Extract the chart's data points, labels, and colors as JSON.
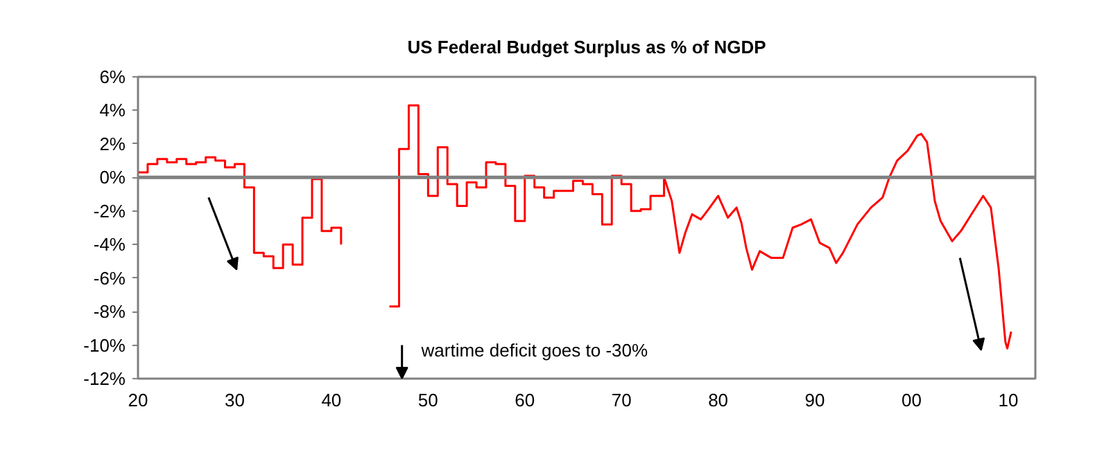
{
  "chart_data": {
    "type": "line",
    "title": "US Federal Budget Surplus as % of NGDP",
    "xlim": [
      1920,
      2012.8
    ],
    "xticks": [
      {
        "value": 1920,
        "label": "20"
      },
      {
        "value": 1930,
        "label": "30"
      },
      {
        "value": 1940,
        "label": "40"
      },
      {
        "value": 1950,
        "label": "50"
      },
      {
        "value": 1960,
        "label": "60"
      },
      {
        "value": 1970,
        "label": "70"
      },
      {
        "value": 1980,
        "label": "80"
      },
      {
        "value": 1990,
        "label": "90"
      },
      {
        "value": 2000,
        "label": "00"
      },
      {
        "value": 2010,
        "label": "10"
      }
    ],
    "ylim": [
      -12,
      6
    ],
    "yticks": [
      {
        "value": 6,
        "label": "6%"
      },
      {
        "value": 4,
        "label": "4%"
      },
      {
        "value": 2,
        "label": "2%"
      },
      {
        "value": 0,
        "label": "0%"
      },
      {
        "value": -2,
        "label": "-2%"
      },
      {
        "value": -4,
        "label": "-4%"
      },
      {
        "value": -6,
        "label": "-6%"
      },
      {
        "value": -8,
        "label": "-8%"
      },
      {
        "value": -10,
        "label": "-10%"
      },
      {
        "value": -12,
        "label": "-12%"
      }
    ],
    "grid": false,
    "ref_lines": [
      {
        "axis": "y",
        "value": 0,
        "color": "#808080"
      }
    ],
    "annotations": [
      "wartime deficit goes to -30%"
    ],
    "series": [
      {
        "type": "step",
        "color": "#ff0000",
        "x": [
          1920,
          1921,
          1922,
          1923,
          1924,
          1925,
          1926,
          1927,
          1928,
          1929,
          1930,
          1931,
          1932,
          1933,
          1934,
          1935,
          1936,
          1937,
          1938,
          1939,
          1940,
          1941,
          1942,
          1943,
          1944,
          1945,
          1946,
          1947,
          1948,
          1949,
          1950,
          1951,
          1952,
          1953,
          1954,
          1955,
          1956,
          1957,
          1958,
          1959,
          1960,
          1961,
          1962,
          1963,
          1964,
          1965,
          1966,
          1967,
          1968,
          1969,
          1970,
          1971,
          1972,
          1973,
          1974.4
        ],
        "values": [
          0.3,
          0.8,
          1.1,
          0.9,
          1.1,
          0.8,
          0.9,
          1.2,
          1.0,
          0.6,
          0.8,
          -0.6,
          -4.5,
          -4.7,
          -5.4,
          -4.0,
          -5.2,
          -2.4,
          -0.1,
          -3.2,
          -3.0,
          -4.0,
          null,
          null,
          null,
          null,
          -7.7,
          1.7,
          4.3,
          0.2,
          -1.1,
          1.8,
          -0.4,
          -1.7,
          -0.3,
          -0.6,
          0.9,
          0.8,
          -0.5,
          -2.6,
          0.1,
          -0.6,
          -1.2,
          -0.8,
          -0.8,
          -0.2,
          -0.4,
          -1.0,
          -2.8,
          0.1,
          -0.4,
          -2.0,
          -1.9,
          -1.1,
          0.0
        ]
      },
      {
        "type": "line",
        "color": "#ff0000",
        "x": [
          1974.4,
          1975.2,
          1976.0,
          1976.6,
          1977.3,
          1978.2,
          1979.0,
          1980.0,
          1981.0,
          1981.9,
          1982.4,
          1982.9,
          1983.5,
          1984.3,
          1985.5,
          1986.7,
          1987.7,
          1988.6,
          1989.6,
          1990.5,
          1991.5,
          1992.2,
          1992.9,
          1994.4,
          1995.8,
          1997.0,
          1997.7,
          1998.5,
          1999.6,
          2000.6,
          2001.0,
          2001.6,
          2002.0,
          2002.4,
          2003.0,
          2004.2,
          2005.1,
          2006.3,
          2007.4,
          2008.2,
          2009.0,
          2009.7,
          2009.9,
          2010.3
        ],
        "values": [
          0.0,
          -1.4,
          -4.5,
          -3.3,
          -2.2,
          -2.5,
          -1.9,
          -1.1,
          -2.4,
          -1.8,
          -2.7,
          -4.2,
          -5.5,
          -4.4,
          -4.8,
          -4.8,
          -3.0,
          -2.8,
          -2.5,
          -3.9,
          -4.2,
          -5.1,
          -4.5,
          -2.8,
          -1.8,
          -1.2,
          0.0,
          1.0,
          1.6,
          2.5,
          2.6,
          2.1,
          0.4,
          -1.4,
          -2.6,
          -3.8,
          -3.2,
          -2.1,
          -1.1,
          -1.8,
          -5.4,
          -9.8,
          -10.2,
          -9.2
        ]
      }
    ]
  }
}
